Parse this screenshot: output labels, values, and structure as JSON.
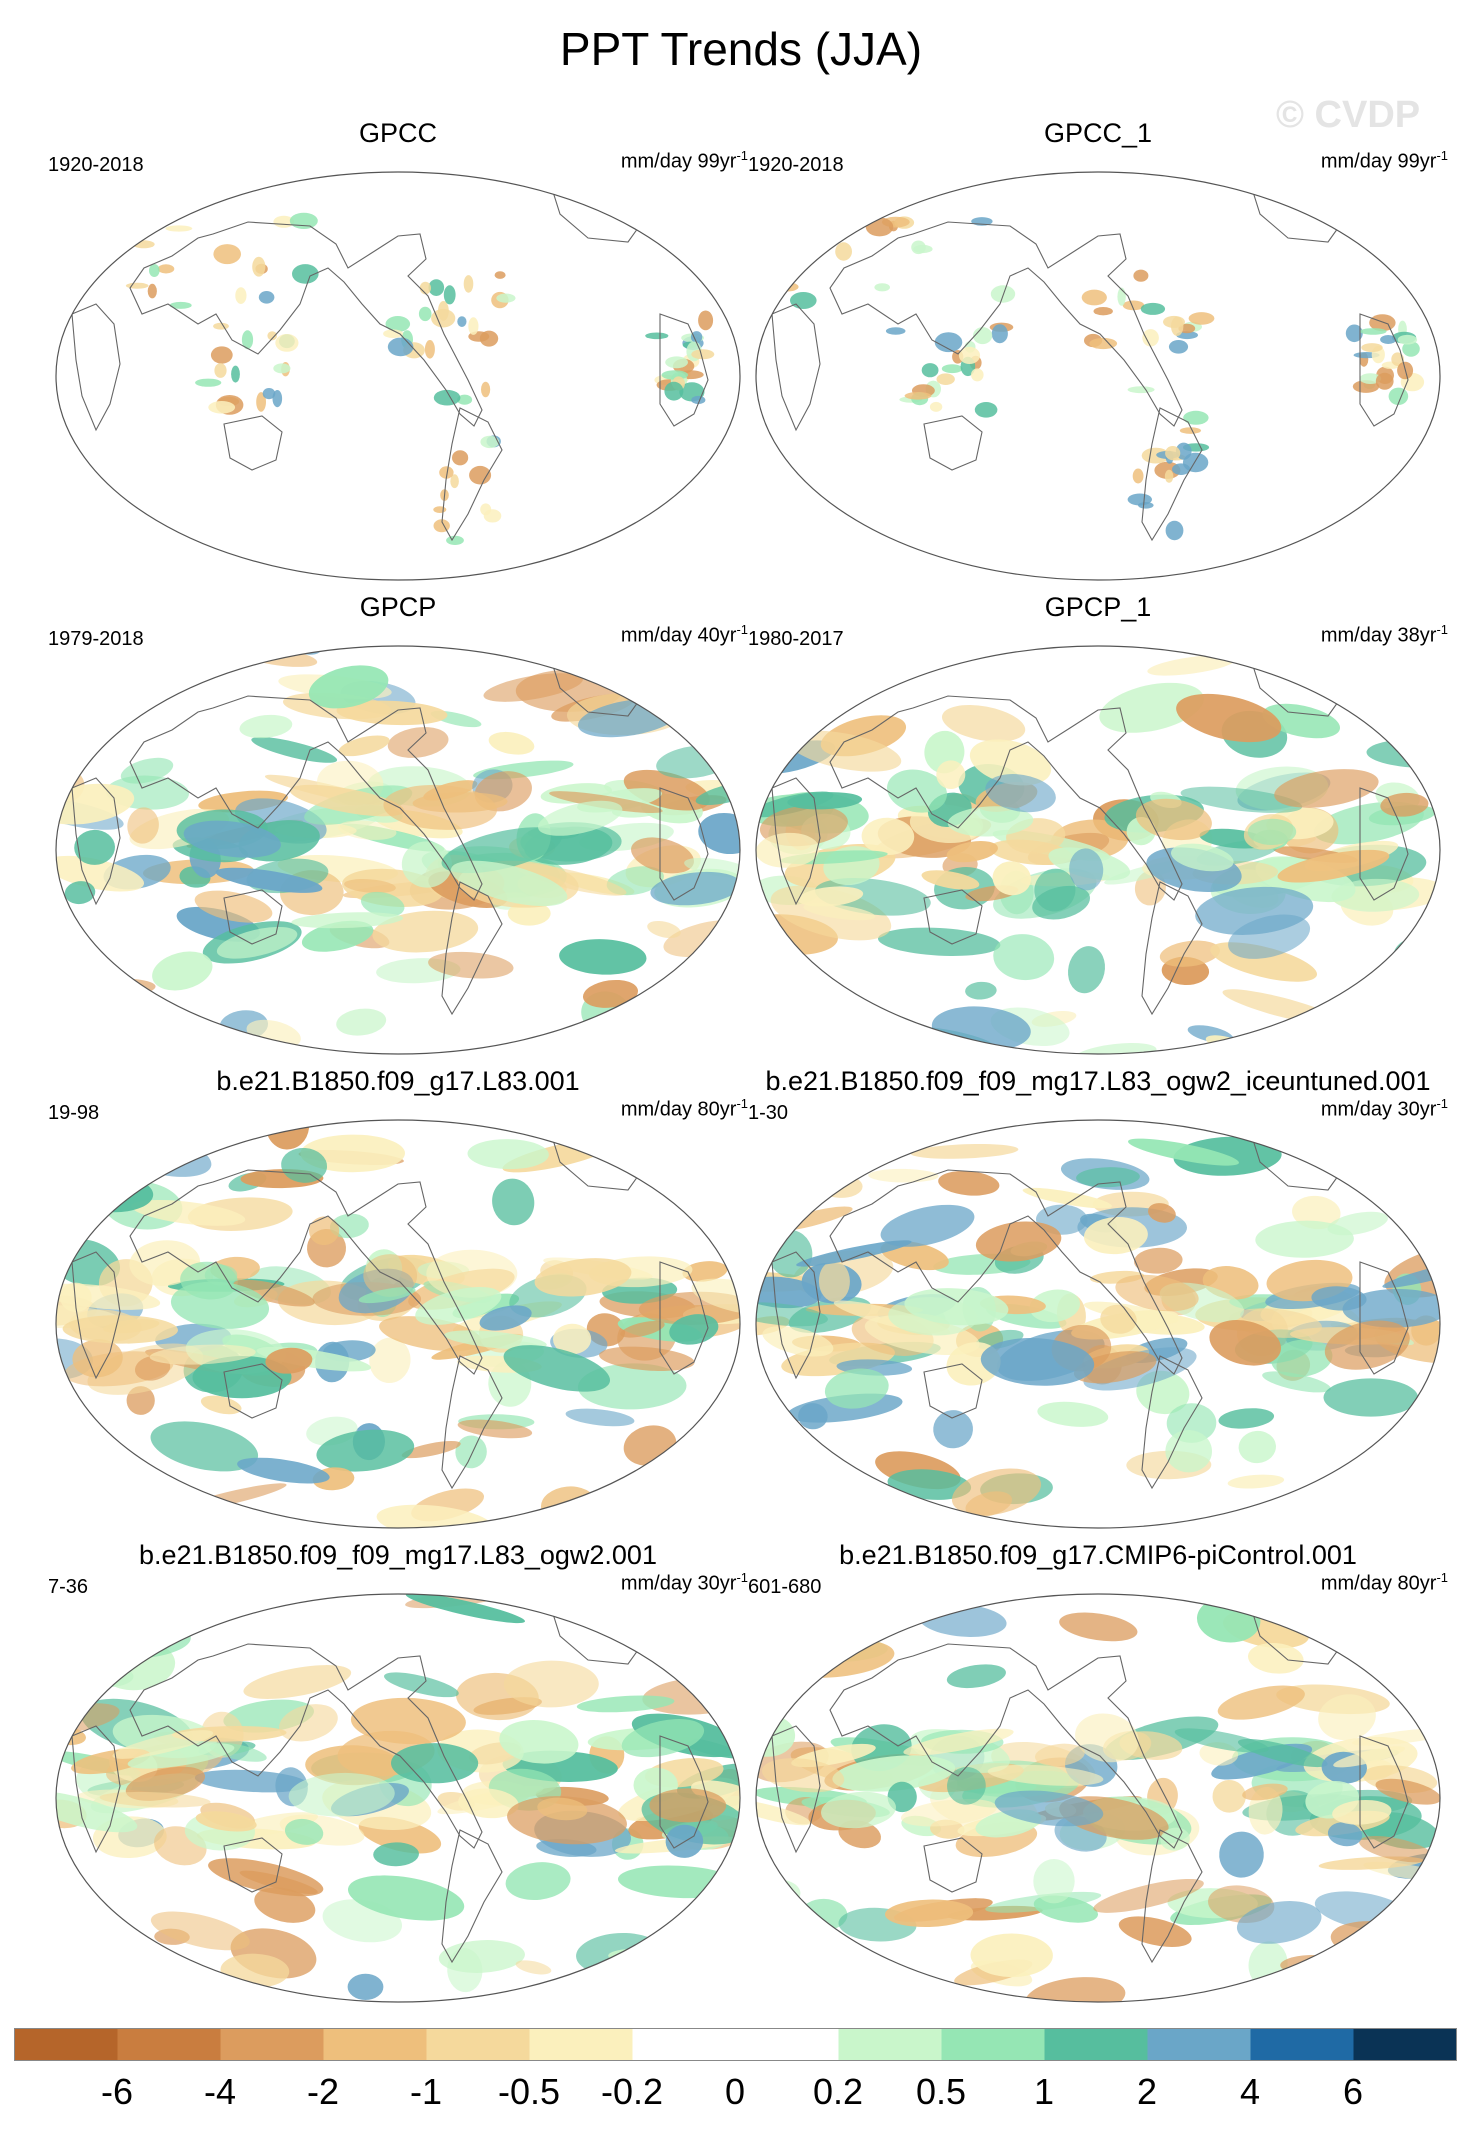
{
  "page": {
    "title": "PPT Trends (JJA)",
    "watermark": "© CVDP"
  },
  "chart_data": [
    {
      "type": "map",
      "title": "GPCC",
      "period": "1920-2018",
      "units": "mm/day 99yr",
      "unit_exponent": "-1",
      "field": "sparse"
    },
    {
      "type": "map",
      "title": "GPCC_1",
      "period": "1920-2018",
      "units": "mm/day 99yr",
      "unit_exponent": "-1",
      "field": "sparse"
    },
    {
      "type": "map",
      "title": "GPCP",
      "period": "1979-2018",
      "units": "mm/day 40yr",
      "unit_exponent": "-1",
      "field": "global"
    },
    {
      "type": "map",
      "title": "GPCP_1",
      "period": "1980-2017",
      "units": "mm/day 38yr",
      "unit_exponent": "-1",
      "field": "global"
    },
    {
      "type": "map",
      "title": "b.e21.B1850.f09_g17.L83.001",
      "period": "19-98",
      "units": "mm/day 80yr",
      "unit_exponent": "-1",
      "field": "global"
    },
    {
      "type": "map",
      "title": "b.e21.B1850.f09_f09_mg17.L83_ogw2_iceuntuned.001",
      "period": "1-30",
      "units": "mm/day 30yr",
      "unit_exponent": "-1",
      "field": "global"
    },
    {
      "type": "map",
      "title": "b.e21.B1850.f09_f09_mg17.L83_ogw2.001",
      "period": "7-36",
      "units": "mm/day 30yr",
      "unit_exponent": "-1",
      "field": "global"
    },
    {
      "type": "map",
      "title": "b.e21.B1850.f09_g17.CMIP6-piControl.001",
      "period": "601-680",
      "units": "mm/day 80yr",
      "unit_exponent": "-1",
      "field": "global"
    }
  ],
  "colorbar": {
    "colors": [
      "#b5652a",
      "#c97d3f",
      "#dc9c5e",
      "#eebf7c",
      "#f5d99c",
      "#fbf0bd",
      "#ffffff",
      "#ffffff",
      "#c9f6cb",
      "#95e6b4",
      "#56be9e",
      "#6aa6c8",
      "#1f6aa5",
      "#0a3355"
    ],
    "labels": [
      "-6",
      "-4",
      "-2",
      "-1",
      "-0.5",
      "-0.2",
      "0",
      "0.2",
      "0.5",
      "1",
      "2",
      "4",
      "6"
    ]
  }
}
